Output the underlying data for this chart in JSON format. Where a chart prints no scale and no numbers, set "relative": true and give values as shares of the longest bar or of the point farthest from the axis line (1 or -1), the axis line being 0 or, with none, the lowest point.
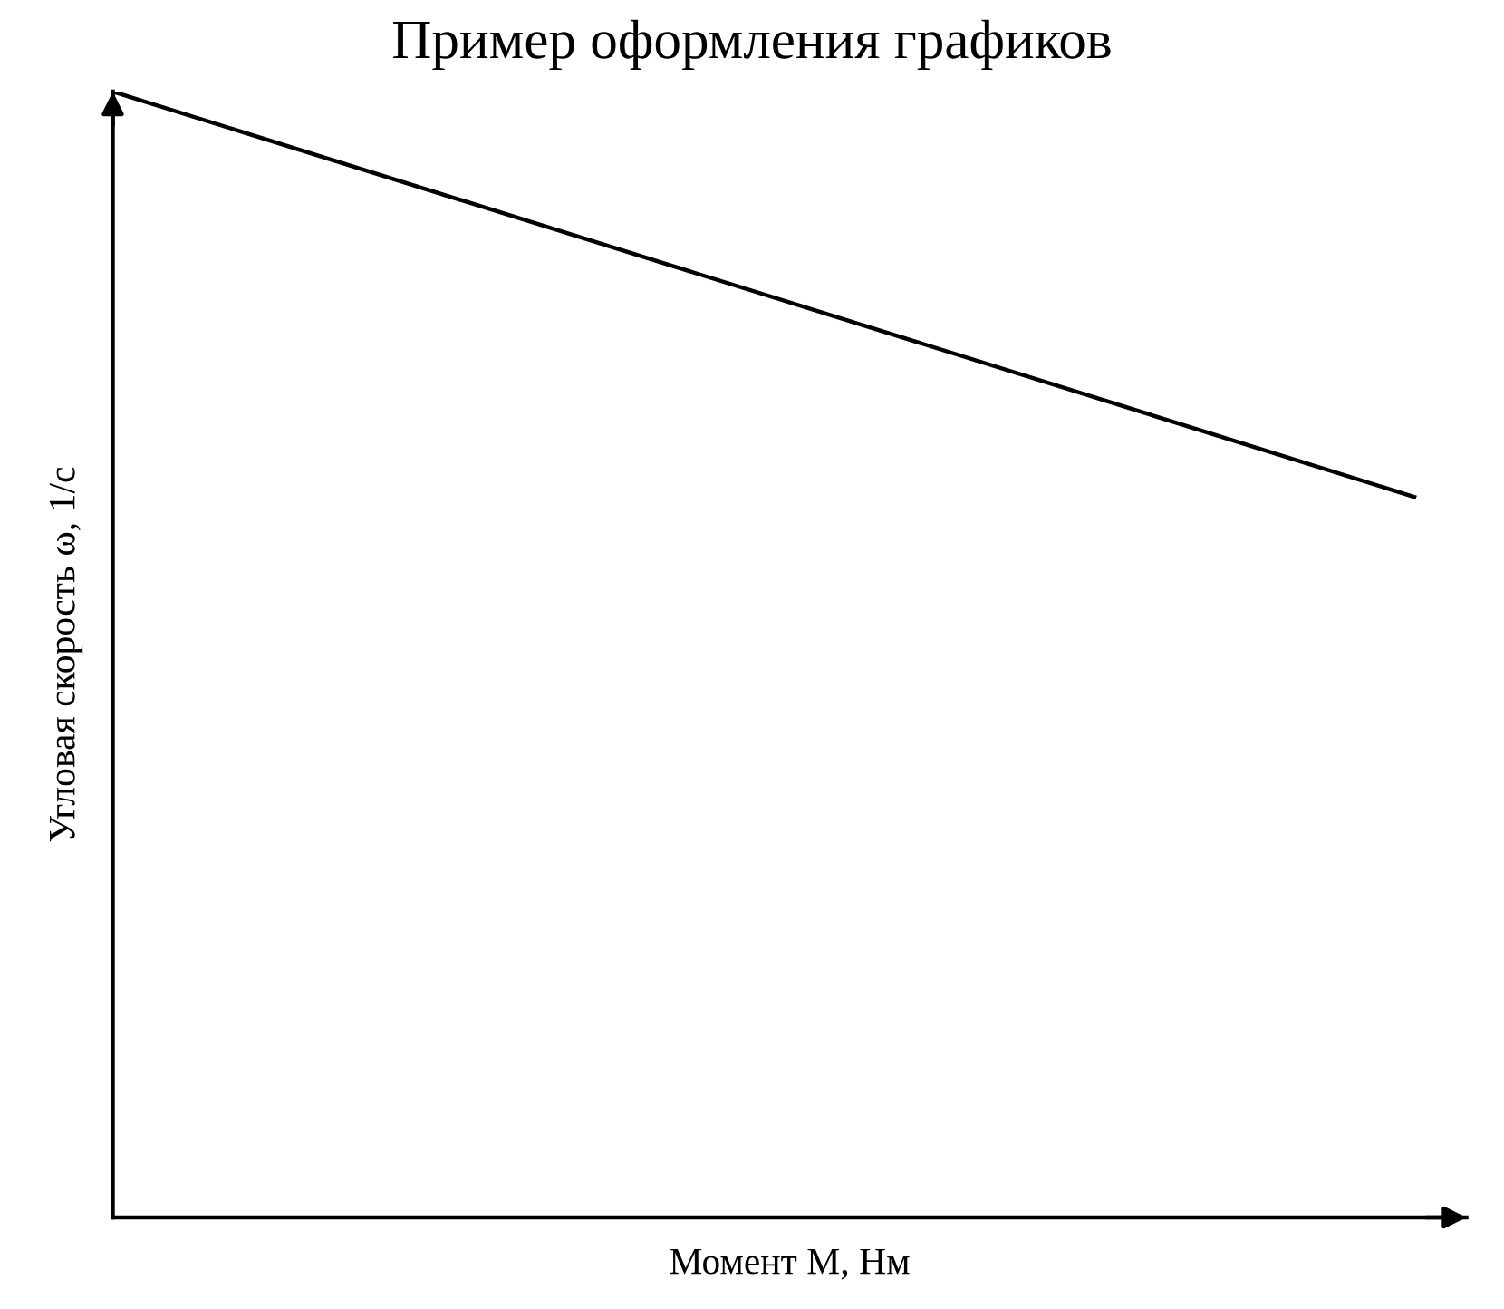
{
  "chart_data": {
    "type": "line",
    "title": "Пример оформления графиков",
    "xlabel": "Момент М, Нм",
    "ylabel": "Угловая скорость ω, 1/с",
    "relative": true,
    "categories": [
      null,
      null
    ],
    "series": [
      {
        "color": "#000000",
        "values": [
          1,
          0.64
        ]
      }
    ],
    "marker": "none",
    "line_style": "solid",
    "tick_labels": false
  }
}
